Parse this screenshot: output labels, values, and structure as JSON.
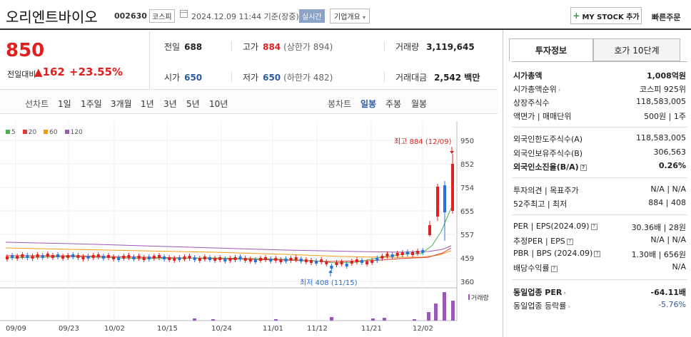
{
  "header": {
    "stock_name": "오리엔트바이오",
    "stock_code": "002630",
    "market": "코스피",
    "datetime": "2024.12.09 11:44 기준(장중)",
    "realtime": "실시간",
    "company_info": "기업개요",
    "mystock_add": "MY STOCK 추가",
    "quick_order": "빠른주문"
  },
  "price": {
    "current": "850",
    "change_label": "전일대비",
    "change": "162",
    "change_pct": "+23.55%"
  },
  "quotes": {
    "prev_label": "전일",
    "prev": "688",
    "high_label": "고가",
    "high": "884",
    "upper_limit": "(상한가 894)",
    "volume_label": "거래량",
    "volume": "3,119,645",
    "open_label": "시가",
    "open": "650",
    "low_label": "저가",
    "low": "650",
    "lower_limit": "(하한가 482)",
    "value_label": "거래대금",
    "value": "2,542 백만"
  },
  "tabs": {
    "line_label": "선차트",
    "periods": [
      "1일",
      "1주일",
      "3개월",
      "1년",
      "3년",
      "5년",
      "10년"
    ],
    "candle_label": "봉차트",
    "candles": [
      "일봉",
      "주봉",
      "월봉"
    ],
    "active_candle": "일봉"
  },
  "legend": [
    {
      "label": "5",
      "color": "#4caf50"
    },
    {
      "label": "20",
      "color": "#e53935"
    },
    {
      "label": "60",
      "color": "#f39c12"
    },
    {
      "label": "120",
      "color": "#9b59b6"
    }
  ],
  "chart_data": {
    "type": "candlestick",
    "yticks": [
      "950",
      "852",
      "754",
      "655",
      "557",
      "459",
      "360"
    ],
    "xticks": [
      "09/09",
      "09/23",
      "10/02",
      "10/15",
      "10/24",
      "11/01",
      "11/12",
      "11/21",
      "12/02"
    ],
    "high_annotation": "최고 884 (12/09)",
    "low_annotation": "최저 408 (11/15)",
    "volume_label": "거래량",
    "colors": {
      "up": "#e02020",
      "down": "#2a6fdb",
      "volume": "#9b59b6"
    }
  },
  "side": {
    "tab_active": "투자정보",
    "tab_inactive": "호가 10단계",
    "market_cap_label": "시가총액",
    "market_cap": "1,008억원",
    "market_cap_rank_label": "시가총액순위",
    "market_cap_rank": "코스피 925위",
    "shares_label": "상장주식수",
    "shares": "118,583,005",
    "par_label": "액면가 | 매매단위",
    "par": "500원 | 1주",
    "foreign_limit_label": "외국인한도주식수(A)",
    "foreign_limit": "118,583,005",
    "foreign_hold_label": "외국인보유주식수(B)",
    "foreign_hold": "306,563",
    "foreign_ratio_label": "외국인소진율(B/A)",
    "foreign_ratio": "0.26%",
    "opinion_label": "투자의견 | 목표주가",
    "opinion": "N/A | N/A",
    "week52_label": "52주최고 | 최저",
    "week52": "884 | 408",
    "per_label": "PER | EPS(2024.09)",
    "per": "30.36배 | 28원",
    "est_per_label": "추정PER | EPS",
    "est_per": "N/A | N/A",
    "pbr_label": "PBR | BPS (2024.09)",
    "pbr": "1.30배 | 656원",
    "dividend_label": "배당수익률",
    "dividend": "N/A",
    "sector_per_label": "동일업종 PER",
    "sector_per": "-64.11배",
    "sector_change_label": "동일업종 등락률",
    "sector_change": "-5.76%"
  }
}
